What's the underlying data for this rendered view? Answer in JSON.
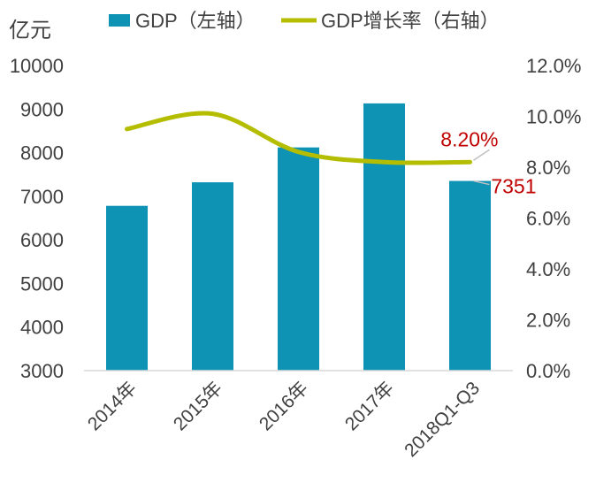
{
  "chart_data": {
    "type": "bar",
    "categories": [
      "2014年",
      "2015年",
      "2016年",
      "2017年",
      "2018Q1-Q3"
    ],
    "y_unit_label": "亿元",
    "ylim_left": [
      3000,
      10000
    ],
    "yticks_left": [
      "3000",
      "4000",
      "5000",
      "6000",
      "7000",
      "8000",
      "9000",
      "10000"
    ],
    "ylim_right": [
      0,
      12
    ],
    "yticks_right": [
      "0.0%",
      "2.0%",
      "4.0%",
      "6.0%",
      "8.0%",
      "10.0%",
      "12.0%"
    ],
    "series": [
      {
        "name": "GDP（左轴）",
        "type": "bar",
        "axis": "left",
        "color": "#0e93b4",
        "values": [
          6780,
          7320,
          8120,
          9130,
          7351
        ]
      },
      {
        "name": "GDP增长率（右轴）",
        "type": "line",
        "axis": "right",
        "color": "#b5bd00",
        "values": [
          9.5,
          10.1,
          8.6,
          8.2,
          8.2
        ]
      }
    ],
    "annotations": [
      {
        "text": "8.20%",
        "series": 1,
        "index": 4,
        "color": "#c00000"
      },
      {
        "text": "7351",
        "series": 0,
        "index": 4,
        "color": "#c00000"
      }
    ],
    "legend": "top",
    "grid": false
  }
}
